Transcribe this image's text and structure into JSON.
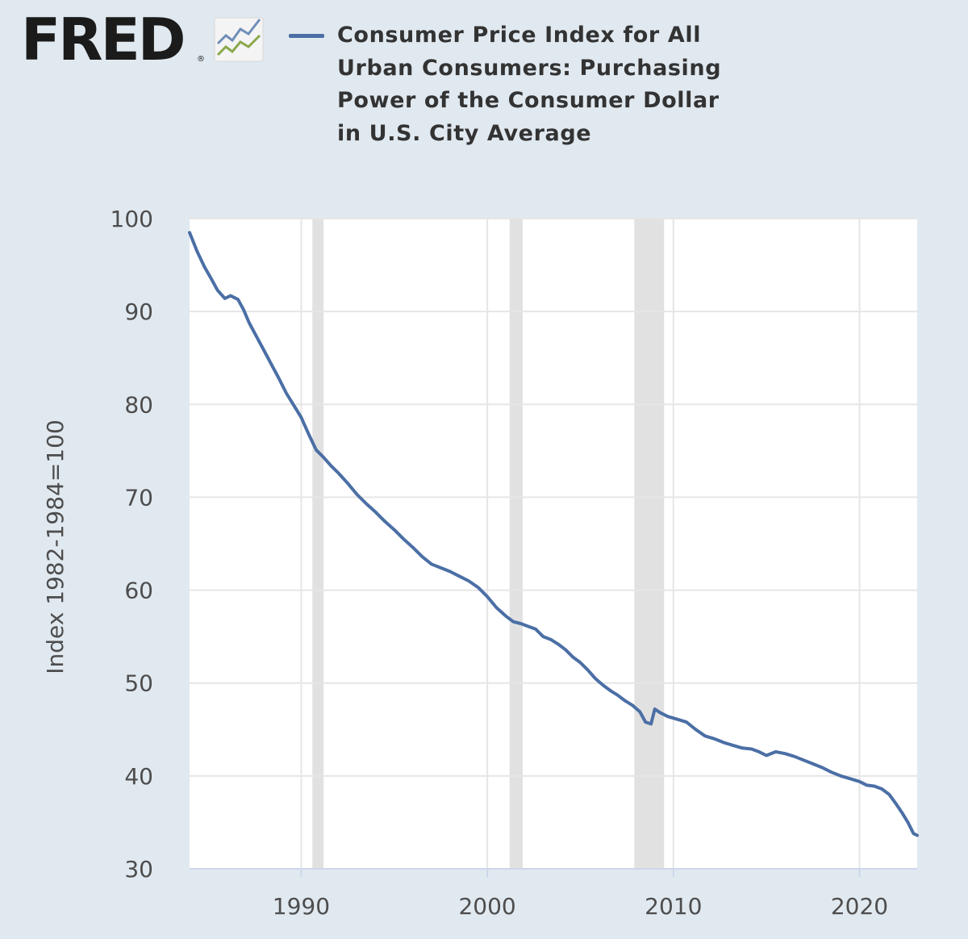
{
  "logo": {
    "text": "FRED",
    "registered_mark": "®",
    "icon": "rising-chart-icon",
    "colors": {
      "text": "#1b1b1b",
      "line_top": "#6f8fb8",
      "line_bottom": "#8aa84b"
    }
  },
  "legend": {
    "series_title": "Consumer Price Index for All Urban Consumers: Purchasing Power of the Consumer Dollar in U.S. City Average",
    "swatch_color": "#4b6fa5"
  },
  "colors": {
    "page_background": "#e1e9f0",
    "plot_background": "#ffffff",
    "gridline": "#e6e6e6",
    "recession_band": "#e1e1e1",
    "axis_line": "#ccd6eb",
    "series_line": "#4b6fa5",
    "label_text": "#4d4d4d"
  },
  "chart_data": {
    "type": "line",
    "title": "Consumer Price Index for All Urban Consumers: Purchasing Power of the Consumer Dollar in U.S. City Average",
    "xlabel": "",
    "ylabel": "Index 1982-1984=100",
    "xlim": [
      1984.0,
      2023.1
    ],
    "ylim": [
      30,
      100
    ],
    "xticks": [
      1990,
      2000,
      2010,
      2020
    ],
    "yticks": [
      30,
      40,
      50,
      60,
      70,
      80,
      90,
      100
    ],
    "grid": true,
    "recessions": [
      [
        1990.6,
        1991.2
      ],
      [
        2001.2,
        2001.9
      ],
      [
        2007.9,
        2009.5
      ]
    ],
    "series": [
      {
        "name": "Consumer Price Index for All Urban Consumers: Purchasing Power of the Consumer Dollar in U.S. City Average",
        "x": [
          1984.0,
          1984.4,
          1984.8,
          1985.2,
          1985.5,
          1985.9,
          1986.2,
          1986.6,
          1986.9,
          1987.2,
          1987.6,
          1988.0,
          1988.4,
          1988.8,
          1989.2,
          1989.6,
          1990.0,
          1990.4,
          1990.8,
          1991.2,
          1991.6,
          1992.0,
          1992.5,
          1993.0,
          1993.5,
          1994.0,
          1994.5,
          1995.0,
          1995.5,
          1996.0,
          1996.5,
          1997.0,
          1997.5,
          1998.0,
          1998.5,
          1999.0,
          1999.5,
          2000.0,
          2000.5,
          2001.0,
          2001.4,
          2001.8,
          2002.2,
          2002.6,
          2003.0,
          2003.4,
          2003.8,
          2004.2,
          2004.6,
          2005.0,
          2005.4,
          2005.8,
          2006.2,
          2006.6,
          2007.0,
          2007.4,
          2007.8,
          2008.2,
          2008.5,
          2008.8,
          2009.0,
          2009.3,
          2009.7,
          2010.2,
          2010.7,
          2011.2,
          2011.7,
          2012.2,
          2012.7,
          2013.2,
          2013.7,
          2014.2,
          2014.6,
          2015.0,
          2015.5,
          2016.0,
          2016.5,
          2017.0,
          2017.5,
          2018.0,
          2018.5,
          2019.0,
          2019.5,
          2020.0,
          2020.4,
          2020.8,
          2021.2,
          2021.6,
          2022.0,
          2022.3,
          2022.6,
          2022.9,
          2023.1
        ],
        "values": [
          98.5,
          96.5,
          94.8,
          93.4,
          92.3,
          91.4,
          91.7,
          91.3,
          90.2,
          88.8,
          87.3,
          85.8,
          84.3,
          82.8,
          81.2,
          79.9,
          78.6,
          76.8,
          75.1,
          74.3,
          73.4,
          72.6,
          71.5,
          70.3,
          69.3,
          68.4,
          67.4,
          66.5,
          65.5,
          64.6,
          63.6,
          62.8,
          62.4,
          62.0,
          61.5,
          61.0,
          60.3,
          59.3,
          58.1,
          57.2,
          56.6,
          56.4,
          56.1,
          55.8,
          55.0,
          54.7,
          54.2,
          53.6,
          52.8,
          52.2,
          51.4,
          50.5,
          49.8,
          49.2,
          48.7,
          48.1,
          47.6,
          46.9,
          45.8,
          45.6,
          47.2,
          46.8,
          46.4,
          46.1,
          45.8,
          45.0,
          44.3,
          44.0,
          43.6,
          43.3,
          43.0,
          42.9,
          42.6,
          42.2,
          42.6,
          42.4,
          42.1,
          41.7,
          41.3,
          40.9,
          40.4,
          40.0,
          39.7,
          39.4,
          39.0,
          38.9,
          38.6,
          38.0,
          36.9,
          36.0,
          35.0,
          33.8,
          33.6
        ]
      }
    ]
  }
}
